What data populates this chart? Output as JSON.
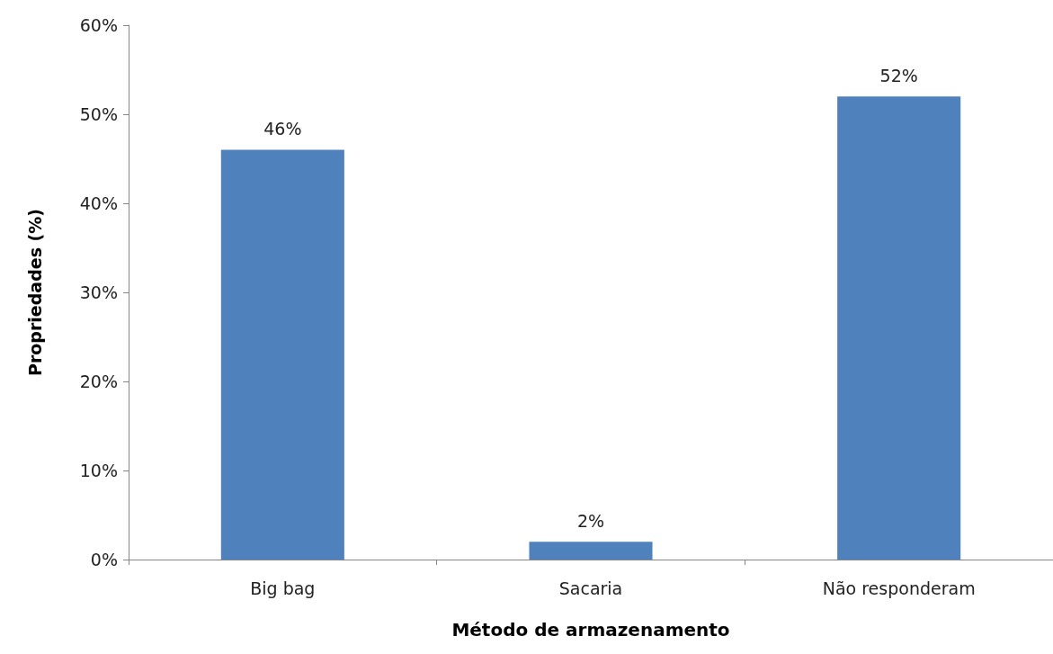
{
  "chart_data": {
    "type": "bar",
    "xlabel": "Método de armazenamento",
    "ylabel": "Propriedades (%)",
    "categories": [
      "Big bag",
      "Sacaria",
      "Não responderam"
    ],
    "values": [
      46,
      2,
      52
    ],
    "value_labels": [
      "46%",
      "2%",
      "52%"
    ],
    "color": "#4f81bd",
    "ylim": [
      0,
      60
    ],
    "yticks": [
      {
        "value": 0,
        "label": "0%"
      },
      {
        "value": 10,
        "label": "10%"
      },
      {
        "value": 20,
        "label": "20%"
      },
      {
        "value": 30,
        "label": "30%"
      },
      {
        "value": 40,
        "label": "40%"
      },
      {
        "value": 50,
        "label": "50%"
      },
      {
        "value": 60,
        "label": "60%"
      }
    ],
    "grid": false
  }
}
